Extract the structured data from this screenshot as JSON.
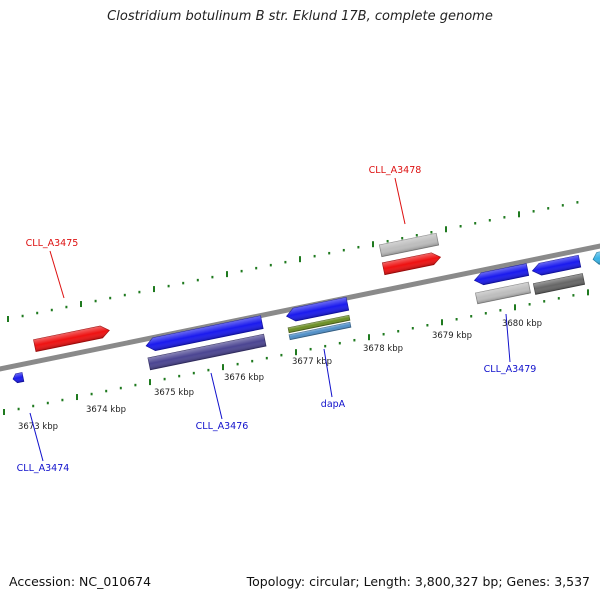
{
  "title": "Clostridium botulinum B str. Eklund 17B, complete genome",
  "footer": {
    "accession": "Accession: NC_010674",
    "summary": "Topology: circular; Length: 3,800,327 bp; Genes: 3,537"
  },
  "colors": {
    "backbone": "#8a8a8a",
    "tick": "#1f7a1f",
    "forward_label": "#dd1111",
    "reverse_label": "#1111cc",
    "scale_label": "#222222"
  },
  "scale_labels": [
    "3673 kbp",
    "3674 kbp",
    "3675 kbp",
    "3676 kbp",
    "3677 kbp",
    "3678 kbp",
    "3679 kbp",
    "3680 kbp"
  ],
  "gene_labels": {
    "CLL_A3474": "CLL_A3474",
    "CLL_A3475": "CLL_A3475",
    "CLL_A3476": "CLL_A3476",
    "dapA": "dapA",
    "CLL_A3478": "CLL_A3478",
    "CLL_A3479": "CLL_A3479"
  },
  "features": [
    {
      "id": "CLL_A3474",
      "strand": "reverse",
      "color": "#1a1aee",
      "labeled": true
    },
    {
      "id": "CLL_A3475",
      "strand": "forward",
      "color": "#ee1111",
      "labeled": true
    },
    {
      "id": "CLL_A3476",
      "strand": "reverse",
      "color": "#1a1aee",
      "labeled": true
    },
    {
      "id": "CLL_A3476-cds",
      "strand": "reverse",
      "color": "#4b4592",
      "labeled": false
    },
    {
      "id": "dapA",
      "strand": "reverse",
      "color": "#1a1aee",
      "labeled": true
    },
    {
      "id": "dapA-feature",
      "strand": "reverse",
      "color": "#6b8e23",
      "labeled": false
    },
    {
      "id": "dapA-feature-2",
      "strand": "reverse",
      "color": "#4f8fc8",
      "labeled": false
    },
    {
      "id": "CLL_A3478",
      "strand": "forward",
      "color": "#bdbdbd",
      "labeled": true
    },
    {
      "id": "CLL_A3478-cds",
      "strand": "forward",
      "color": "#ee1111",
      "labeled": false
    },
    {
      "id": "CLL_A3479",
      "strand": "reverse",
      "color": "#1a1aee",
      "labeled": true
    },
    {
      "id": "CLL_A3479-cds",
      "strand": "reverse",
      "color": "#bdbdbd",
      "labeled": false
    },
    {
      "id": "gene-3680-a",
      "strand": "reverse",
      "color": "#1a1aee",
      "labeled": false
    },
    {
      "id": "gene-3680-b",
      "strand": "reverse",
      "color": "#666666",
      "labeled": false
    },
    {
      "id": "gene-edge",
      "strand": "reverse",
      "color": "#39b3e6",
      "labeled": false
    }
  ]
}
